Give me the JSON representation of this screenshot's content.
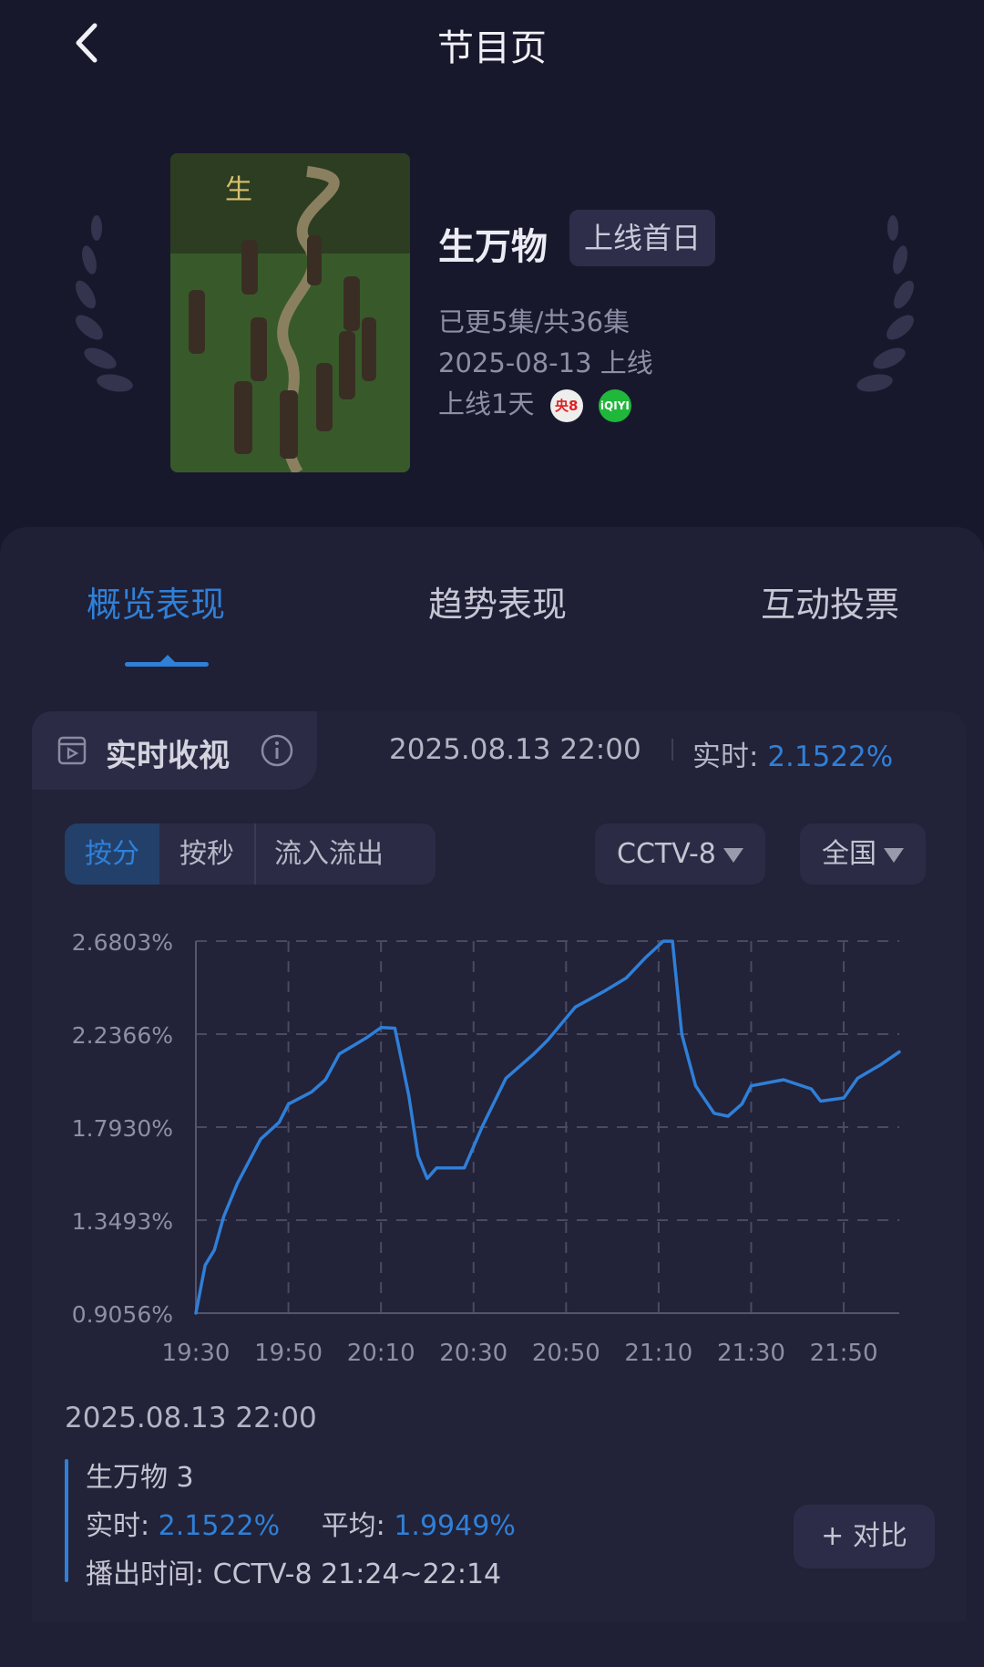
{
  "header": {
    "title": "节目页",
    "back_icon": "chevron-left-icon"
  },
  "show": {
    "title": "生万物",
    "badge": "上线首日",
    "episodes": "已更5集/共36集",
    "release": "2025-08-13 上线",
    "online_days": "上线1天",
    "channels": [
      {
        "name": "央8",
        "color": "#e02020"
      },
      {
        "name": "iQIYI",
        "color": "#1fb83a"
      }
    ]
  },
  "tabs": [
    {
      "label": "概览表现",
      "active": true
    },
    {
      "label": "趋势表现",
      "active": false
    },
    {
      "label": "互动投票",
      "active": false
    }
  ],
  "realtime": {
    "title": "实时收视",
    "datetime": "2025.08.13 22:00",
    "realtime_label": "实时:",
    "realtime_value": "2.1522%"
  },
  "segments": [
    {
      "label": "按分",
      "active": true
    },
    {
      "label": "按秒",
      "active": false
    },
    {
      "label": "流入流出",
      "active": false
    }
  ],
  "filters": {
    "channel": "CCTV-8",
    "region": "全国"
  },
  "colors": {
    "accent": "#2f80d8",
    "background": "#18182d"
  },
  "chart_data": {
    "type": "line",
    "yticks": [
      "0.9056%",
      "1.3493%",
      "1.7930%",
      "2.2366%",
      "2.6803%"
    ],
    "ylim": [
      0.9056,
      2.6803
    ],
    "xticks": [
      "19:30",
      "19:50",
      "20:10",
      "20:30",
      "20:50",
      "21:10",
      "21:30",
      "21:50"
    ],
    "xlim": [
      "19:30",
      "22:02"
    ],
    "grid": true,
    "series": [
      {
        "color": "#2f7fd8",
        "points": [
          [
            "19:30",
            0.906
          ],
          [
            "19:32",
            1.135
          ],
          [
            "19:34",
            1.207
          ],
          [
            "19:36",
            1.366
          ],
          [
            "19:39",
            1.526
          ],
          [
            "19:44",
            1.736
          ],
          [
            "19:48",
            1.816
          ],
          [
            "19:50",
            1.903
          ],
          [
            "19:55",
            1.961
          ],
          [
            "19:58",
            2.019
          ],
          [
            "20:01",
            2.142
          ],
          [
            "20:07",
            2.221
          ],
          [
            "20:10",
            2.268
          ],
          [
            "20:13",
            2.265
          ],
          [
            "20:16",
            1.946
          ],
          [
            "20:18",
            1.656
          ],
          [
            "20:20",
            1.548
          ],
          [
            "20:22",
            1.598
          ],
          [
            "20:28",
            1.598
          ],
          [
            "20:32",
            1.801
          ],
          [
            "20:37",
            2.026
          ],
          [
            "20:43",
            2.142
          ],
          [
            "20:46",
            2.207
          ],
          [
            "20:52",
            2.366
          ],
          [
            "20:58",
            2.438
          ],
          [
            "21:03",
            2.504
          ],
          [
            "21:07",
            2.598
          ],
          [
            "21:11",
            2.68
          ],
          [
            "21:13",
            2.68
          ],
          [
            "21:15",
            2.236
          ],
          [
            "21:18",
            1.99
          ],
          [
            "21:22",
            1.859
          ],
          [
            "21:25",
            1.845
          ],
          [
            "21:28",
            1.903
          ],
          [
            "21:30",
            1.99
          ],
          [
            "21:37",
            2.019
          ],
          [
            "21:43",
            1.975
          ],
          [
            "21:45",
            1.917
          ],
          [
            "21:50",
            1.932
          ],
          [
            "21:53",
            2.026
          ],
          [
            "21:58",
            2.091
          ],
          [
            "22:02",
            2.152
          ]
        ]
      }
    ]
  },
  "summary": {
    "datetime": "2025.08.13 22:00",
    "episode": "生万物 3",
    "realtime_label": "实时:",
    "realtime_value": "2.1522%",
    "average_label": "平均:",
    "average_value": "1.9949%",
    "airtime_label": "播出时间:",
    "airtime_value": "CCTV-8 21:24~22:14",
    "compare_button": "+ 对比"
  }
}
